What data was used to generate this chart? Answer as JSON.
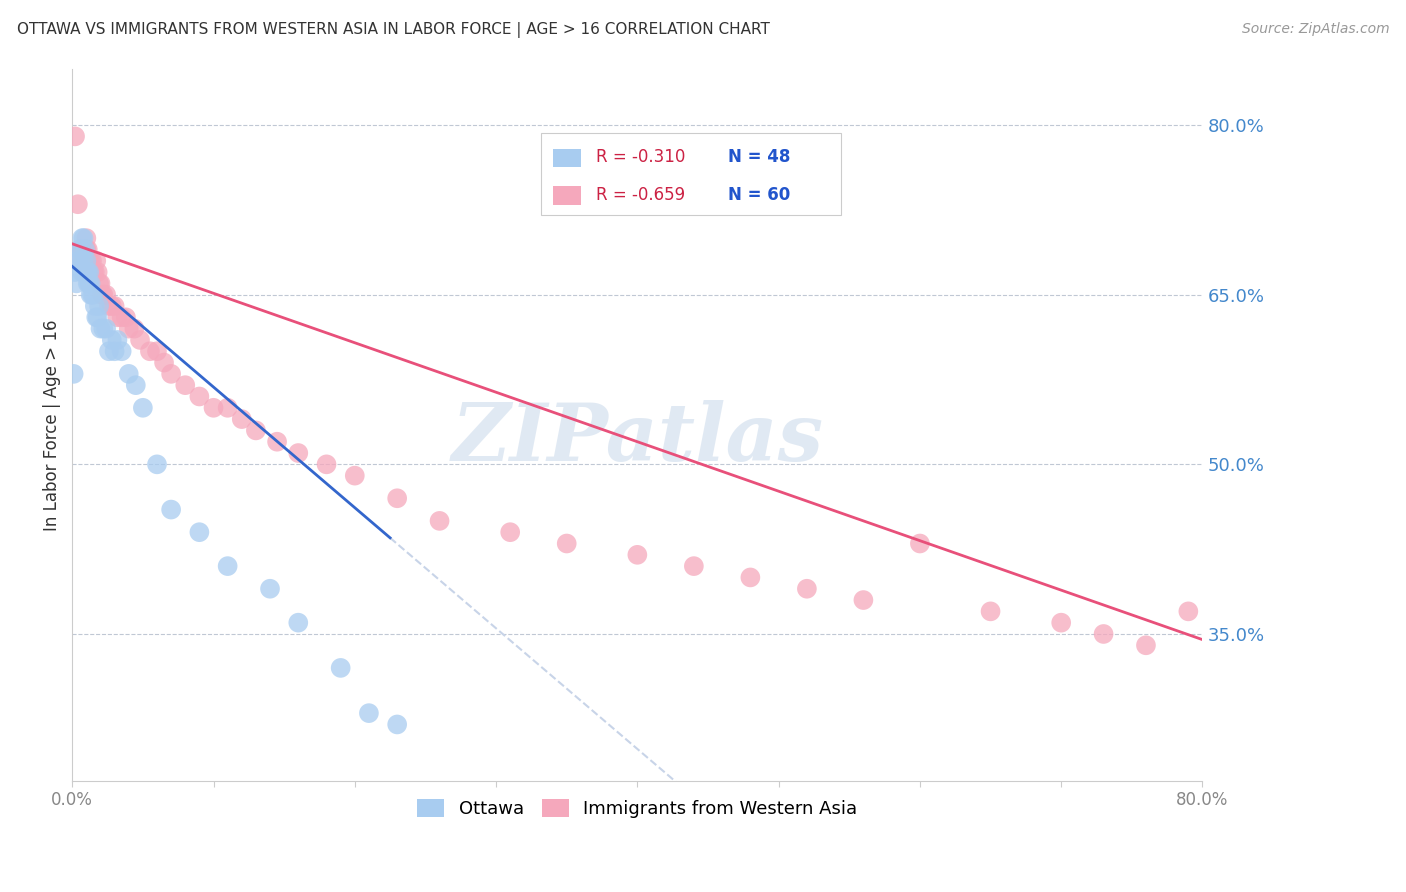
{
  "title": "OTTAWA VS IMMIGRANTS FROM WESTERN ASIA IN LABOR FORCE | AGE > 16 CORRELATION CHART",
  "source": "Source: ZipAtlas.com",
  "ylabel": "In Labor Force | Age > 16",
  "xmin": 0.0,
  "xmax": 0.8,
  "ymin": 0.22,
  "ymax": 0.85,
  "ytick_labels": [
    "80.0%",
    "65.0%",
    "50.0%",
    "35.0%"
  ],
  "ytick_values": [
    0.8,
    0.65,
    0.5,
    0.35
  ],
  "ottawa_color": "#a8ccf0",
  "immigrants_color": "#f5a8bc",
  "regression_blue": "#3366cc",
  "regression_pink": "#e8507a",
  "regression_dashed_color": "#c8d4e8",
  "watermark": "ZIPatlas",
  "background_color": "#ffffff",
  "ottawa_x": [
    0.001,
    0.002,
    0.003,
    0.004,
    0.005,
    0.006,
    0.006,
    0.007,
    0.007,
    0.008,
    0.008,
    0.009,
    0.009,
    0.01,
    0.01,
    0.01,
    0.011,
    0.011,
    0.012,
    0.012,
    0.013,
    0.013,
    0.014,
    0.015,
    0.016,
    0.017,
    0.018,
    0.019,
    0.02,
    0.022,
    0.024,
    0.026,
    0.028,
    0.03,
    0.032,
    0.035,
    0.04,
    0.045,
    0.05,
    0.06,
    0.07,
    0.09,
    0.11,
    0.14,
    0.16,
    0.19,
    0.21,
    0.23
  ],
  "ottawa_y": [
    0.58,
    0.67,
    0.66,
    0.68,
    0.69,
    0.69,
    0.68,
    0.7,
    0.67,
    0.7,
    0.68,
    0.67,
    0.69,
    0.67,
    0.68,
    0.67,
    0.66,
    0.67,
    0.67,
    0.66,
    0.65,
    0.66,
    0.65,
    0.65,
    0.64,
    0.63,
    0.63,
    0.64,
    0.62,
    0.62,
    0.62,
    0.6,
    0.61,
    0.6,
    0.61,
    0.6,
    0.58,
    0.57,
    0.55,
    0.5,
    0.46,
    0.44,
    0.41,
    0.39,
    0.36,
    0.32,
    0.28,
    0.27
  ],
  "immigrants_x": [
    0.002,
    0.004,
    0.005,
    0.006,
    0.007,
    0.008,
    0.009,
    0.01,
    0.01,
    0.011,
    0.012,
    0.013,
    0.014,
    0.015,
    0.016,
    0.017,
    0.018,
    0.019,
    0.02,
    0.021,
    0.022,
    0.024,
    0.026,
    0.028,
    0.03,
    0.032,
    0.035,
    0.038,
    0.04,
    0.044,
    0.048,
    0.055,
    0.06,
    0.065,
    0.07,
    0.08,
    0.09,
    0.1,
    0.11,
    0.12,
    0.13,
    0.145,
    0.16,
    0.18,
    0.2,
    0.23,
    0.26,
    0.31,
    0.35,
    0.4,
    0.44,
    0.48,
    0.52,
    0.56,
    0.6,
    0.65,
    0.7,
    0.73,
    0.76,
    0.79
  ],
  "immigrants_y": [
    0.79,
    0.73,
    0.68,
    0.69,
    0.69,
    0.68,
    0.68,
    0.7,
    0.69,
    0.69,
    0.68,
    0.68,
    0.68,
    0.67,
    0.67,
    0.68,
    0.67,
    0.66,
    0.66,
    0.65,
    0.65,
    0.65,
    0.64,
    0.64,
    0.64,
    0.63,
    0.63,
    0.63,
    0.62,
    0.62,
    0.61,
    0.6,
    0.6,
    0.59,
    0.58,
    0.57,
    0.56,
    0.55,
    0.55,
    0.54,
    0.53,
    0.52,
    0.51,
    0.5,
    0.49,
    0.47,
    0.45,
    0.44,
    0.43,
    0.42,
    0.41,
    0.4,
    0.39,
    0.38,
    0.43,
    0.37,
    0.36,
    0.35,
    0.34,
    0.37
  ],
  "blue_line_x0": 0.0,
  "blue_line_y0": 0.675,
  "blue_line_x1": 0.225,
  "blue_line_y1": 0.435,
  "dash_line_x0": 0.225,
  "dash_line_x1": 0.565,
  "pink_line_x0": 0.0,
  "pink_line_y0": 0.695,
  "pink_line_x1": 0.8,
  "pink_line_y1": 0.345
}
